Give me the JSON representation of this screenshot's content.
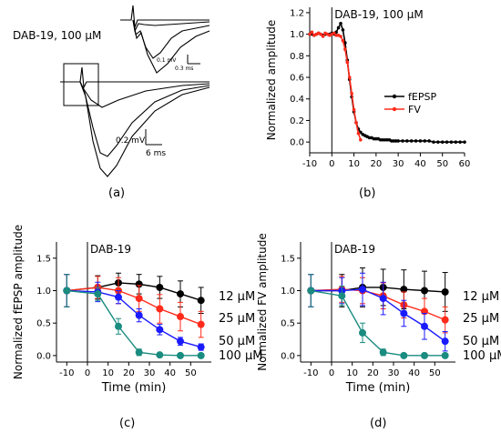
{
  "panel_labels": [
    "(a)",
    "(b)",
    "(c)",
    "(d)"
  ],
  "trace_panel": {
    "drug_label": "DAB-19, 100 µM",
    "inset_scale_v": "0.1 mV",
    "inset_scale_t": "0.3 ms",
    "main_scale_v": "0.2 mV",
    "main_scale_t": "6 ms"
  },
  "colors": {
    "black": "#000000",
    "red": "#ff2a1a",
    "blue": "#1a1aff",
    "teal": "#1a8c80"
  },
  "chart_data": [
    {
      "id": "b",
      "type": "line",
      "title": "",
      "annotation": "DAB-19, 100 µM",
      "xlabel": "",
      "ylabel": "Normalized amplitude",
      "xlim": [
        -10,
        60
      ],
      "ylim": [
        -0.1,
        1.25
      ],
      "xticks": [
        -10,
        0,
        10,
        20,
        30,
        40,
        50,
        60
      ],
      "yticks": [
        0.0,
        0.2,
        0.4,
        0.6,
        0.8,
        1.0,
        1.2
      ],
      "drug_onset_x": 0,
      "legend_position": "right",
      "series": [
        {
          "name": "fEPSP",
          "color": "#000000",
          "x": [
            -10,
            -9,
            -8,
            -7,
            -6,
            -5,
            -4,
            -3,
            -2,
            -1,
            0,
            1,
            2,
            3,
            4,
            5,
            6,
            7,
            8,
            9,
            10,
            11,
            12,
            13,
            14,
            15,
            16,
            17,
            18,
            19,
            20,
            21,
            22,
            23,
            24,
            25,
            26,
            27,
            28,
            29,
            30,
            32,
            34,
            36,
            38,
            40,
            42,
            44,
            46,
            48,
            50,
            52,
            54,
            56,
            58,
            60
          ],
          "y": [
            1.0,
            1.0,
            0.99,
            1.0,
            1.01,
            1.0,
            0.99,
            1.0,
            1.0,
            1.0,
            1.01,
            1.0,
            1.02,
            1.06,
            1.1,
            1.04,
            0.92,
            0.76,
            0.58,
            0.42,
            0.28,
            0.18,
            0.12,
            0.09,
            0.07,
            0.06,
            0.05,
            0.04,
            0.04,
            0.03,
            0.03,
            0.03,
            0.02,
            0.02,
            0.02,
            0.02,
            0.02,
            0.01,
            0.01,
            0.01,
            0.01,
            0.01,
            0.01,
            0.01,
            0.01,
            0.01,
            0.01,
            0.01,
            0.0,
            0.0,
            0.0,
            0.0,
            0.0,
            0.0,
            0.0,
            0.0
          ]
        },
        {
          "name": "FV",
          "color": "#ff2a1a",
          "x": [
            -10,
            -9,
            -8,
            -7,
            -6,
            -5,
            -4,
            -3,
            -2,
            -1,
            0,
            1,
            2,
            3,
            4,
            5,
            6,
            7,
            8,
            9,
            10,
            11,
            12,
            13
          ],
          "y": [
            1.0,
            1.02,
            0.99,
            1.0,
            1.01,
            1.0,
            0.98,
            1.01,
            1.0,
            0.99,
            1.0,
            1.01,
            0.99,
            0.99,
            0.98,
            0.94,
            0.86,
            0.74,
            0.6,
            0.45,
            0.3,
            0.18,
            0.08,
            0.02
          ]
        }
      ]
    },
    {
      "id": "c",
      "type": "line",
      "title": "",
      "annotation": "DAB-19",
      "xlabel": "Time (min)",
      "ylabel": "Normalized fEPSP amplitude",
      "xlim": [
        -15,
        60
      ],
      "ylim": [
        -0.1,
        1.75
      ],
      "xticks": [
        -10,
        0,
        10,
        20,
        30,
        40,
        50
      ],
      "yticks": [
        0.0,
        0.5,
        1.0,
        1.5
      ],
      "drug_onset_x": 0,
      "series": [
        {
          "name": "12 µM",
          "color": "#000000",
          "x": [
            -10,
            5,
            15,
            25,
            35,
            45,
            55
          ],
          "y": [
            1.0,
            1.05,
            1.12,
            1.1,
            1.05,
            0.95,
            0.85
          ],
          "err": [
            0.25,
            0.18,
            0.15,
            0.15,
            0.17,
            0.2,
            0.2
          ]
        },
        {
          "name": "25 µM",
          "color": "#ff2a1a",
          "x": [
            -10,
            5,
            15,
            25,
            35,
            45,
            55
          ],
          "y": [
            1.0,
            1.05,
            1.0,
            0.88,
            0.72,
            0.6,
            0.48
          ],
          "err": [
            0.25,
            0.17,
            0.2,
            0.2,
            0.22,
            0.22,
            0.2
          ]
        },
        {
          "name": "50 µM",
          "color": "#1a1aff",
          "x": [
            -10,
            5,
            15,
            25,
            35,
            45,
            55
          ],
          "y": [
            1.0,
            0.98,
            0.9,
            0.62,
            0.4,
            0.22,
            0.13
          ],
          "err": [
            0.25,
            0.15,
            0.1,
            0.1,
            0.08,
            0.06,
            0.05
          ]
        },
        {
          "name": "100 µM",
          "color": "#1a8c80",
          "x": [
            -10,
            5,
            15,
            25,
            35,
            45,
            55
          ],
          "y": [
            1.0,
            0.95,
            0.45,
            0.05,
            0.01,
            0.0,
            0.0
          ],
          "err": [
            0.25,
            0.1,
            0.12,
            0.05,
            0.03,
            0.02,
            0.02
          ]
        }
      ]
    },
    {
      "id": "d",
      "type": "line",
      "title": "",
      "annotation": "DAB-19",
      "xlabel": "Time (min)",
      "ylabel": "Normalized FV amplitude",
      "xlim": [
        -15,
        60
      ],
      "ylim": [
        -0.1,
        1.75
      ],
      "xticks": [
        -10,
        0,
        10,
        20,
        30,
        40,
        50
      ],
      "yticks": [
        0.0,
        0.5,
        1.0,
        1.5
      ],
      "drug_onset_x": 0,
      "series": [
        {
          "name": "12 µM",
          "color": "#000000",
          "x": [
            -10,
            5,
            15,
            25,
            35,
            45,
            55
          ],
          "y": [
            1.0,
            1.0,
            1.05,
            1.05,
            1.02,
            1.0,
            0.98
          ],
          "err": [
            0.25,
            0.25,
            0.3,
            0.28,
            0.3,
            0.3,
            0.3
          ]
        },
        {
          "name": "25 µM",
          "color": "#ff2a1a",
          "x": [
            -10,
            5,
            15,
            25,
            35,
            45,
            55
          ],
          "y": [
            1.0,
            1.02,
            1.0,
            0.92,
            0.78,
            0.68,
            0.55
          ],
          "err": [
            0.25,
            0.2,
            0.2,
            0.2,
            0.2,
            0.2,
            0.2
          ]
        },
        {
          "name": "50 µM",
          "color": "#1a1aff",
          "x": [
            -10,
            5,
            15,
            25,
            35,
            45,
            55
          ],
          "y": [
            1.0,
            1.0,
            1.02,
            0.88,
            0.65,
            0.45,
            0.22
          ],
          "err": [
            0.25,
            0.2,
            0.25,
            0.25,
            0.2,
            0.2,
            0.15
          ]
        },
        {
          "name": "100 µM",
          "color": "#1a8c80",
          "x": [
            -10,
            5,
            15,
            25,
            35,
            45,
            55
          ],
          "y": [
            1.0,
            0.92,
            0.35,
            0.05,
            0.0,
            0.0,
            0.0
          ],
          "err": [
            0.25,
            0.15,
            0.15,
            0.05,
            0.02,
            0.02,
            0.02
          ]
        }
      ]
    }
  ]
}
